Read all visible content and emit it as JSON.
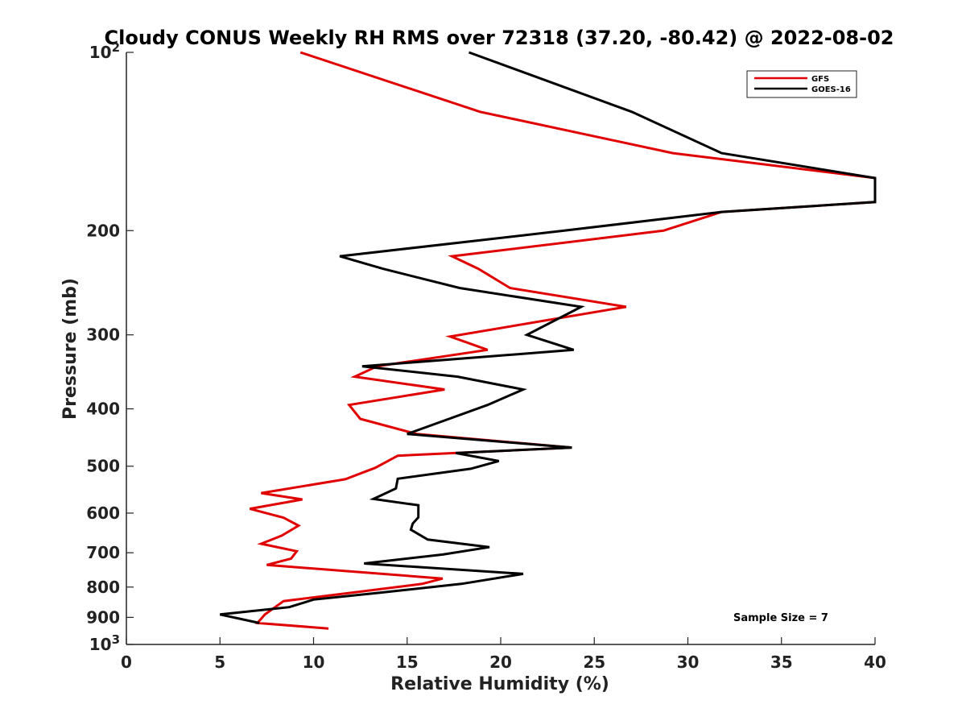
{
  "chart_data": {
    "type": "line",
    "title": "Cloudy CONUS Weekly RH RMS over 72318 (37.20, -80.42) @ 2022-08-02",
    "xlabel": "Relative Humidity (%)",
    "ylabel": "Pressure (mb)",
    "xlim": [
      0,
      40
    ],
    "ylim": [
      100,
      1000
    ],
    "yscale": "log",
    "y_reversed": true,
    "x_ticks": [
      "0",
      "5",
      "10",
      "15",
      "20",
      "25",
      "30",
      "35",
      "40"
    ],
    "y_ticks": [
      {
        "value": 100,
        "base": "10",
        "exp": "2"
      },
      {
        "value": 200,
        "label": "200"
      },
      {
        "value": 300,
        "label": "300"
      },
      {
        "value": 400,
        "label": "400"
      },
      {
        "value": 500,
        "label": "500"
      },
      {
        "value": 600,
        "label": "600"
      },
      {
        "value": 700,
        "label": "700"
      },
      {
        "value": 800,
        "label": "800"
      },
      {
        "value": 900,
        "label": "900"
      },
      {
        "value": 1000,
        "base": "10",
        "exp": "3"
      }
    ],
    "legend_position": "top-right",
    "annotation": "Sample Size = 7",
    "series": [
      {
        "name": "GFS",
        "color": "#e00000",
        "x": [
          9.3,
          18.9,
          29.2,
          40.0,
          40.0,
          31.8,
          28.7,
          17.4,
          18.8,
          20.5,
          26.7,
          17.3,
          19.3,
          13.4,
          12.2,
          17.0,
          11.9,
          12.5,
          15.5,
          23.8,
          14.5,
          13.3,
          11.7,
          7.2,
          9.4,
          6.6,
          8.4,
          9.2,
          8.3,
          7.2,
          9.1,
          8.8,
          7.5,
          16.9,
          15.8,
          12.0,
          8.4,
          7.4,
          7.0,
          10.8
        ],
        "y": [
          100,
          126,
          148,
          163,
          179,
          186,
          200,
          221,
          232,
          250,
          269,
          302,
          318,
          339,
          353,
          371,
          394,
          416,
          441,
          465,
          480,
          503,
          526,
          555,
          569,
          590,
          611,
          630,
          655,
          676,
          696,
          716,
          734,
          774,
          790,
          818,
          845,
          890,
          920,
          940
        ]
      },
      {
        "name": "GOES-16",
        "color": "#000000",
        "x": [
          18.3,
          27.0,
          31.8,
          40.0,
          40.0,
          31.8,
          23.4,
          11.4,
          13.7,
          17.8,
          24.3,
          21.4,
          23.9,
          12.6,
          17.7,
          21.2,
          19.3,
          15.0,
          23.8,
          17.6,
          19.9,
          18.4,
          14.5,
          14.4,
          13.2,
          15.6,
          15.6,
          15.3,
          15.2,
          16.1,
          19.4,
          16.9,
          12.7,
          21.2,
          17.9,
          13.5,
          10.0,
          8.7,
          5.0,
          7.1
        ],
        "y": [
          100,
          126,
          148,
          163,
          179,
          186,
          200,
          221,
          232,
          250,
          269,
          300,
          318,
          339,
          353,
          371,
          394,
          441,
          465,
          475,
          490,
          505,
          525,
          545,
          568,
          582,
          610,
          625,
          640,
          665,
          685,
          705,
          730,
          760,
          790,
          818,
          840,
          865,
          890,
          920
        ]
      }
    ]
  }
}
